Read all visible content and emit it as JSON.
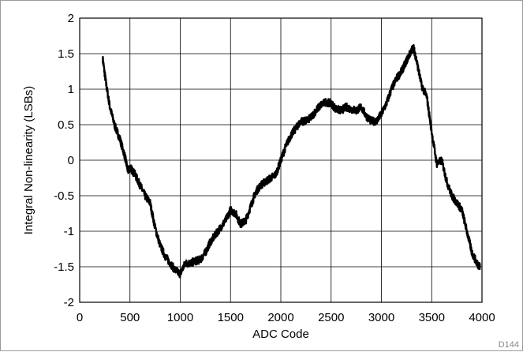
{
  "figure_id": "D144",
  "chart_data": {
    "type": "line",
    "title": "",
    "xlabel": "ADC Code",
    "ylabel": "Integral Non-linearity (LSBs)",
    "xlim": [
      0,
      4000
    ],
    "ylim": [
      -2,
      2
    ],
    "x_ticks": [
      0,
      500,
      1000,
      1500,
      2000,
      2500,
      3000,
      3500,
      4000
    ],
    "y_ticks": [
      -2,
      -1.5,
      -1,
      -0.5,
      0,
      0.5,
      1,
      1.5,
      2
    ],
    "grid": true,
    "line_color": "#000000",
    "series": [
      {
        "x": [
          230,
          260,
          300,
          350,
          400,
          450,
          480,
          500,
          550,
          600,
          650,
          700,
          750,
          800,
          850,
          900,
          950,
          1000,
          1050,
          1100,
          1150,
          1200,
          1250,
          1300,
          1350,
          1400,
          1450,
          1500,
          1550,
          1600,
          1650,
          1700,
          1750,
          1800,
          1850,
          1900,
          1950,
          2000,
          2050,
          2100,
          2150,
          2200,
          2250,
          2300,
          2350,
          2400,
          2450,
          2500,
          2550,
          2600,
          2650,
          2700,
          2750,
          2800,
          2850,
          2900,
          2950,
          3000,
          3050,
          3100,
          3150,
          3200,
          3250,
          3300,
          3320,
          3350,
          3400,
          3450,
          3500,
          3550,
          3600,
          3650,
          3700,
          3750,
          3800,
          3850,
          3900,
          3950,
          3980
        ],
        "y": [
          1.42,
          1.1,
          0.75,
          0.48,
          0.3,
          0.05,
          -0.15,
          -0.1,
          -0.2,
          -0.35,
          -0.5,
          -0.6,
          -0.95,
          -1.2,
          -1.35,
          -1.45,
          -1.55,
          -1.6,
          -1.45,
          -1.45,
          -1.42,
          -1.4,
          -1.3,
          -1.15,
          -1.05,
          -0.95,
          -0.85,
          -0.7,
          -0.75,
          -0.9,
          -0.85,
          -0.65,
          -0.45,
          -0.35,
          -0.3,
          -0.25,
          -0.2,
          0.0,
          0.2,
          0.35,
          0.45,
          0.55,
          0.55,
          0.6,
          0.7,
          0.78,
          0.82,
          0.8,
          0.72,
          0.7,
          0.75,
          0.72,
          0.7,
          0.75,
          0.62,
          0.55,
          0.55,
          0.65,
          0.8,
          1.0,
          1.15,
          1.25,
          1.4,
          1.55,
          1.58,
          1.4,
          1.05,
          0.9,
          0.4,
          -0.05,
          0.0,
          -0.3,
          -0.5,
          -0.6,
          -0.7,
          -1.0,
          -1.3,
          -1.45,
          -1.5
        ]
      }
    ]
  }
}
